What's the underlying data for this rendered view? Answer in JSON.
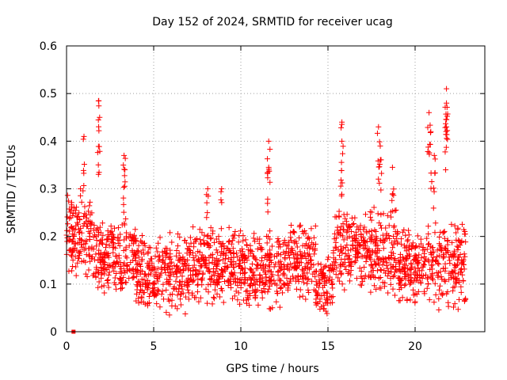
{
  "chart_data": {
    "type": "scatter",
    "title": "Day 152 of 2024, SRMTID for receiver ucag",
    "xlabel": "GPS time / hours",
    "ylabel": "SRMTID / TECUs",
    "xlim": [
      0,
      24
    ],
    "ylim": [
      0,
      0.6
    ],
    "xticks": [
      0,
      5,
      10,
      15,
      20
    ],
    "xtick_labels": [
      "0",
      "5",
      "10",
      "15",
      "20"
    ],
    "yticks": [
      0,
      0.1,
      0.2,
      0.3,
      0.4,
      0.5,
      0.6
    ],
    "ytick_labels": [
      "0",
      "0.1",
      "0.2",
      "0.3",
      "0.4",
      "0.5",
      "0.6"
    ],
    "grid": true,
    "marker": "+",
    "color": "#ff0000",
    "x_range_hours": [
      0,
      22.9
    ],
    "typical_range": [
      0.05,
      0.25
    ],
    "outlier_marker": {
      "x": 0.4,
      "y": 0.0
    },
    "peaks": [
      {
        "x": 0.8,
        "y": 0.3
      },
      {
        "x": 1.0,
        "y": 0.41
      },
      {
        "x": 1.85,
        "y": 0.485
      },
      {
        "x": 1.9,
        "y": 0.45
      },
      {
        "x": 3.3,
        "y": 0.37
      },
      {
        "x": 3.35,
        "y": 0.34
      },
      {
        "x": 8.1,
        "y": 0.3
      },
      {
        "x": 8.9,
        "y": 0.3
      },
      {
        "x": 11.6,
        "y": 0.4
      },
      {
        "x": 11.6,
        "y": 0.345
      },
      {
        "x": 15.8,
        "y": 0.44
      },
      {
        "x": 15.8,
        "y": 0.4
      },
      {
        "x": 17.9,
        "y": 0.43
      },
      {
        "x": 18.0,
        "y": 0.39
      },
      {
        "x": 18.7,
        "y": 0.345
      },
      {
        "x": 20.8,
        "y": 0.46
      },
      {
        "x": 20.9,
        "y": 0.42
      },
      {
        "x": 21.8,
        "y": 0.51
      },
      {
        "x": 21.8,
        "y": 0.48
      },
      {
        "x": 21.8,
        "y": 0.43
      },
      {
        "x": 21.1,
        "y": 0.37
      }
    ],
    "segments": [
      {
        "x0": 0.0,
        "x1": 1.5,
        "base": 0.2,
        "spread": 0.1
      },
      {
        "x0": 1.5,
        "x1": 4.0,
        "base": 0.16,
        "spread": 0.1
      },
      {
        "x0": 4.0,
        "x1": 7.0,
        "base": 0.12,
        "spread": 0.09
      },
      {
        "x0": 7.0,
        "x1": 9.5,
        "base": 0.14,
        "spread": 0.09
      },
      {
        "x0": 9.5,
        "x1": 12.5,
        "base": 0.13,
        "spread": 0.09
      },
      {
        "x0": 12.5,
        "x1": 14.3,
        "base": 0.15,
        "spread": 0.09
      },
      {
        "x0": 14.3,
        "x1": 15.3,
        "base": 0.1,
        "spread": 0.08
      },
      {
        "x0": 15.3,
        "x1": 19.0,
        "base": 0.17,
        "spread": 0.1
      },
      {
        "x0": 19.0,
        "x1": 22.9,
        "base": 0.14,
        "spread": 0.1
      }
    ]
  }
}
